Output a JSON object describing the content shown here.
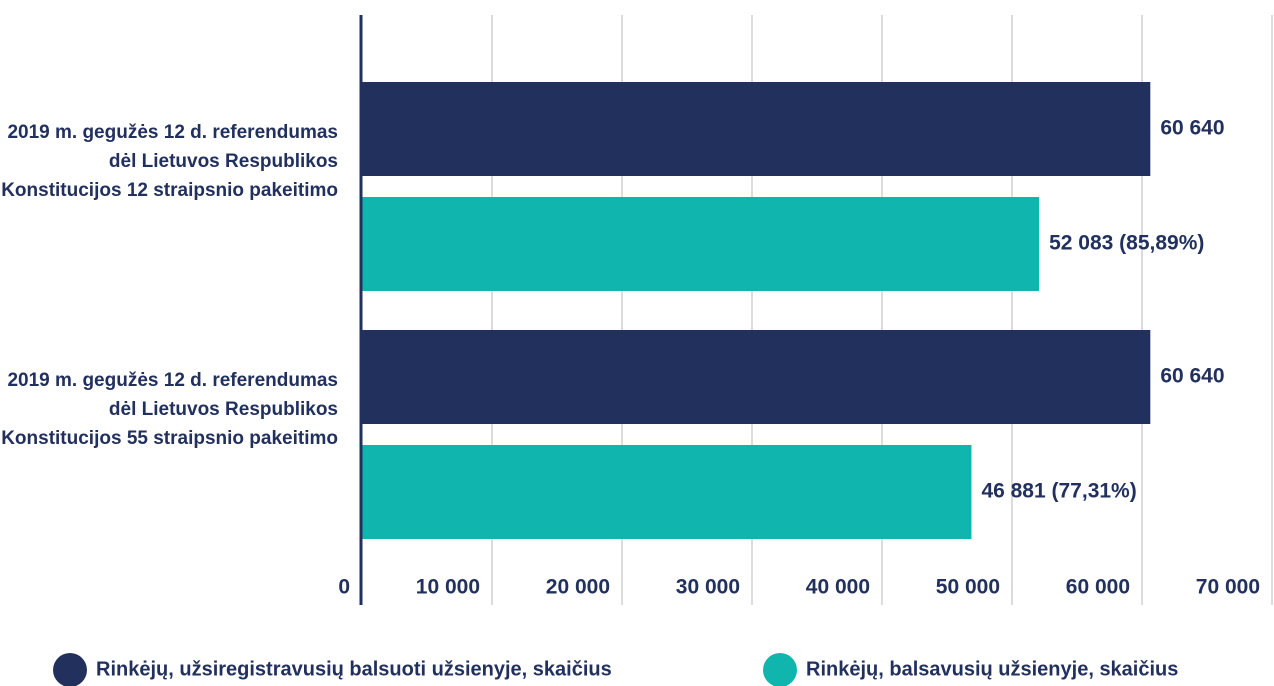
{
  "chart_data": {
    "type": "hbar",
    "categories": [
      "2019 m. gegužės 12 d. referendumas dėl Lietuvos Respublikos Konstitucijos 12 straipsnio pakeitimo",
      "2019 m. gegužės 12 d. referendumas dėl Lietuvos Respublikos Konstitucijos 55 straipsnio pakeitimo"
    ],
    "series": [
      {
        "name": "Rinkėjų, užsiregistravusių balsuoti užsienyje, skaičius",
        "color": "#22305e",
        "values": [
          60640,
          60640
        ],
        "value_labels": [
          "60 640",
          "60 640"
        ]
      },
      {
        "name": "Rinkėjų, balsavusių užsienyje, skaičius",
        "color": "#10b5ae",
        "values": [
          52083,
          46881
        ],
        "value_labels": [
          "52 083 (85,89%)",
          "46 881 (77,31%)"
        ]
      }
    ],
    "xlim": [
      0,
      70000
    ],
    "xticks": [
      0,
      {
        "value": 10000,
        "label": "10 000"
      },
      {
        "value": 20000,
        "label": "20 000"
      },
      {
        "value": 30000,
        "label": "30 000"
      },
      {
        "value": 40000,
        "label": "40 000"
      },
      {
        "value": 50000,
        "label": "50 000"
      },
      {
        "value": 60000,
        "label": "60 000"
      },
      {
        "value": 70000,
        "label": "70 000"
      }
    ],
    "grid": true
  }
}
